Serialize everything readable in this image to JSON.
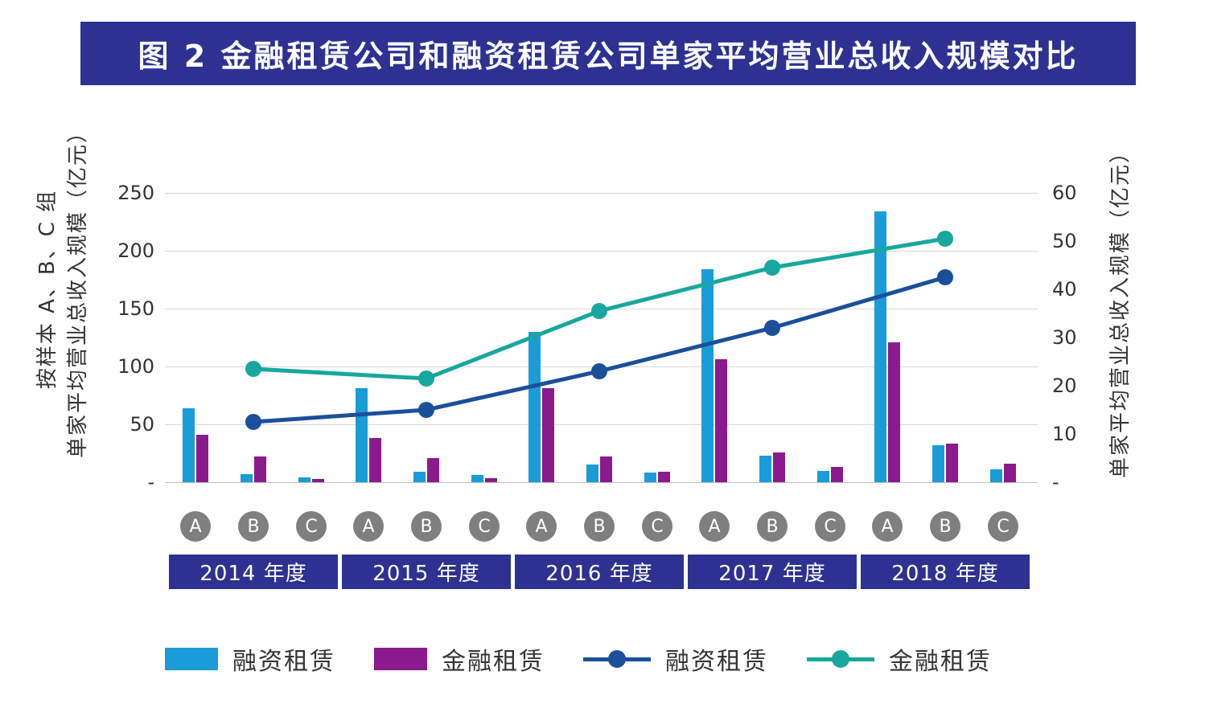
{
  "title": "图 2 金融租赁公司和融资租赁公司单家平均营业总收入规模对比",
  "colors": {
    "banner_bg": "#2e3192",
    "bar_rongzi": "#1a9cd8",
    "bar_jinrong": "#8a1a8e",
    "line_rongzi": "#1b4f9b",
    "line_jinrong": "#18a79e",
    "year_box_bg": "#2e3192",
    "group_circle_bg": "#7f7f7f",
    "gridline": "#d9d9d9",
    "axis_line": "#bdbdbd"
  },
  "axis_left": {
    "title_line1": "按样本 A、B、C 组",
    "title_line2": "单家平均营业总收入规模（亿元）",
    "ticks": [
      "250",
      "200",
      "150",
      "100",
      "50",
      "-"
    ]
  },
  "axis_right": {
    "title": "单家平均营业总收入规模（亿元）",
    "ticks": [
      "60",
      "50",
      "40",
      "30",
      "20",
      "10",
      "-"
    ]
  },
  "chart_data": {
    "type": "bar",
    "combo": [
      "grouped-bar",
      "line"
    ],
    "years": [
      "2014 年度",
      "2015 年度",
      "2016 年度",
      "2017 年度",
      "2018 年度"
    ],
    "groups": [
      "A",
      "B",
      "C"
    ],
    "left_axis_range": [
      0,
      250
    ],
    "right_axis_range": [
      0,
      60
    ],
    "grid": true,
    "bar_series": [
      {
        "name": "融资租赁",
        "axis": "left",
        "color_key": "bar_rongzi",
        "values_by_year": [
          [
            64,
            7,
            4
          ],
          [
            81,
            9,
            6
          ],
          [
            130,
            15,
            8
          ],
          [
            184,
            23,
            10
          ],
          [
            234,
            32,
            11
          ]
        ]
      },
      {
        "name": "金融租赁",
        "axis": "left",
        "color_key": "bar_jinrong",
        "values_by_year": [
          [
            41,
            22,
            2.5
          ],
          [
            38,
            21,
            3.5
          ],
          [
            81,
            22,
            9
          ],
          [
            106,
            26,
            13
          ],
          [
            121,
            33,
            16
          ]
        ]
      }
    ],
    "line_series": [
      {
        "name": "融资租赁",
        "axis": "right",
        "color_key": "line_rongzi",
        "values": [
          12.5,
          15,
          23,
          32,
          42.5
        ]
      },
      {
        "name": "金融租赁",
        "axis": "right",
        "color_key": "line_jinrong",
        "values": [
          23.5,
          21.5,
          35.5,
          44.5,
          50.5
        ]
      }
    ]
  },
  "legend": [
    {
      "label": "融资租赁",
      "swatch": "bar",
      "color_key": "bar_rongzi"
    },
    {
      "label": "金融租赁",
      "swatch": "bar",
      "color_key": "bar_jinrong"
    },
    {
      "label": "融资租赁",
      "swatch": "line",
      "color_key": "line_rongzi"
    },
    {
      "label": "金融租赁",
      "swatch": "line",
      "color_key": "line_jinrong"
    }
  ]
}
